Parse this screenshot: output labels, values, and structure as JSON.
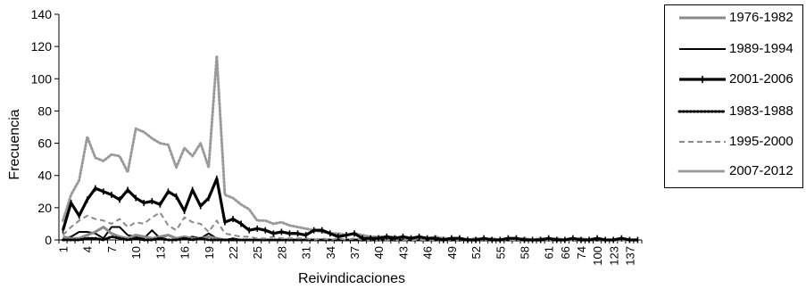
{
  "chart_data": {
    "type": "line",
    "ylabel": "Frecuencia",
    "xlabel": "Reivindicaciones",
    "ylim": [
      0,
      140
    ],
    "yticks": [
      0,
      20,
      40,
      60,
      80,
      100,
      120,
      140
    ],
    "x_tick_labels": [
      "1",
      "4",
      "7",
      "10",
      "13",
      "16",
      "19",
      "22",
      "25",
      "28",
      "31",
      "34",
      "37",
      "40",
      "43",
      "46",
      "49",
      "52",
      "55",
      "58",
      "61",
      "66",
      "74",
      "100",
      "123",
      "137"
    ],
    "x": [
      "1",
      "2",
      "3",
      "4",
      "5",
      "6",
      "7",
      "8",
      "9",
      "10",
      "11",
      "12",
      "13",
      "14",
      "15",
      "16",
      "17",
      "18",
      "19",
      "20",
      "21",
      "22",
      "23",
      "24",
      "25",
      "26",
      "27",
      "28",
      "29",
      "30",
      "31",
      "32",
      "33",
      "34",
      "35",
      "36",
      "37",
      "38",
      "39",
      "40",
      "41",
      "42",
      "43",
      "44",
      "45",
      "46",
      "47",
      "48",
      "49",
      "50",
      "51",
      "52",
      "53",
      "54",
      "55",
      "56",
      "57",
      "58",
      "59",
      "60",
      "61",
      "63",
      "66",
      "68",
      "74",
      "80",
      "100",
      "108",
      "123",
      "131",
      "137",
      "140"
    ],
    "grid": false,
    "legend_position": "right",
    "series": [
      {
        "name": "1976-1982",
        "color": "#8a8a8a",
        "style": "solid-thick",
        "values": [
          2,
          1,
          1,
          3,
          5,
          8,
          4,
          2,
          1,
          3,
          2,
          1,
          2,
          3,
          1,
          2,
          1,
          1,
          2,
          1,
          0,
          0,
          0,
          0,
          0,
          0,
          0,
          0,
          0,
          0,
          0,
          0,
          0,
          0,
          0,
          0,
          0,
          0,
          0,
          0,
          0,
          0,
          0,
          0,
          0,
          0,
          0,
          0,
          0,
          0,
          0,
          0,
          0,
          0,
          0,
          0,
          0,
          0,
          0,
          0,
          0,
          0,
          0,
          0,
          0,
          0,
          0,
          0,
          0,
          0,
          0,
          0
        ]
      },
      {
        "name": "1989-1994",
        "color": "#000000",
        "style": "solid",
        "values": [
          1,
          2,
          5,
          5,
          4,
          1,
          8,
          8,
          3,
          2,
          1,
          6,
          1,
          3,
          1,
          1,
          2,
          1,
          4,
          1,
          0,
          1,
          0,
          0,
          0,
          0,
          0,
          0,
          0,
          0,
          0,
          0,
          0,
          0,
          0,
          0,
          0,
          0,
          0,
          0,
          0,
          0,
          0,
          0,
          0,
          0,
          0,
          0,
          0,
          0,
          0,
          0,
          0,
          0,
          0,
          0,
          0,
          0,
          0,
          0,
          0,
          0,
          0,
          0,
          0,
          0,
          0,
          0,
          0,
          0,
          0,
          0
        ]
      },
      {
        "name": "2001-2006",
        "color": "#000000",
        "style": "solid-marker",
        "values": [
          6,
          23,
          15,
          25,
          32,
          30,
          28,
          25,
          31,
          26,
          23,
          24,
          22,
          30,
          27,
          18,
          31,
          21,
          26,
          38,
          11,
          13,
          10,
          6,
          7,
          6,
          4,
          5,
          4,
          4,
          3,
          6,
          6,
          4,
          2,
          3,
          4,
          1,
          1,
          1,
          2,
          1,
          2,
          1,
          2,
          1,
          1,
          0,
          1,
          1,
          0,
          0,
          1,
          0,
          0,
          1,
          1,
          0,
          0,
          0,
          1,
          0,
          0,
          1,
          0,
          0,
          1,
          0,
          0,
          1,
          0,
          0
        ]
      },
      {
        "name": "1983-1988",
        "color": "#000000",
        "style": "dotted",
        "values": [
          0,
          0,
          0,
          1,
          1,
          0,
          2,
          1,
          0,
          1,
          0,
          0,
          1,
          0,
          0,
          1,
          0,
          1,
          0,
          0,
          0,
          0,
          0,
          0,
          0,
          0,
          0,
          0,
          0,
          0,
          0,
          0,
          0,
          0,
          0,
          0,
          0,
          0,
          0,
          0,
          0,
          0,
          0,
          0,
          0,
          0,
          0,
          0,
          0,
          0,
          0,
          0,
          0,
          0,
          0,
          0,
          0,
          0,
          0,
          0,
          0,
          0,
          0,
          0,
          0,
          0,
          0,
          0,
          0,
          0,
          0,
          0
        ]
      },
      {
        "name": "1995-2000",
        "color": "#8a8a8a",
        "style": "dashed",
        "values": [
          3,
          8,
          12,
          15,
          13,
          12,
          10,
          13,
          8,
          11,
          10,
          14,
          17,
          9,
          6,
          14,
          11,
          10,
          5,
          12,
          4,
          3,
          2,
          2,
          1,
          1,
          2,
          1,
          1,
          1,
          1,
          0,
          1,
          0,
          1,
          0,
          1,
          0,
          0,
          0,
          0,
          0,
          0,
          0,
          0,
          0,
          0,
          0,
          0,
          0,
          0,
          0,
          0,
          0,
          0,
          0,
          0,
          0,
          0,
          0,
          0,
          0,
          0,
          0,
          0,
          0,
          0,
          0,
          0,
          0,
          0,
          0
        ]
      },
      {
        "name": "2007-2012",
        "color": "#9a9a9a",
        "style": "dotted",
        "values": [
          12,
          28,
          37,
          64,
          51,
          49,
          53,
          52,
          42,
          69,
          67,
          63,
          60,
          59,
          45,
          57,
          52,
          60,
          45,
          114,
          28,
          26,
          22,
          19,
          12,
          12,
          10,
          11,
          9,
          8,
          7,
          6,
          5,
          4,
          4,
          3,
          4,
          3,
          2,
          2,
          2,
          2,
          1,
          1,
          1,
          1,
          2,
          1,
          1,
          1,
          0,
          1,
          0,
          1,
          0,
          1,
          0,
          1,
          0,
          1,
          0,
          1,
          0,
          0,
          1,
          0,
          1,
          0,
          0,
          0,
          0,
          0
        ]
      }
    ]
  }
}
